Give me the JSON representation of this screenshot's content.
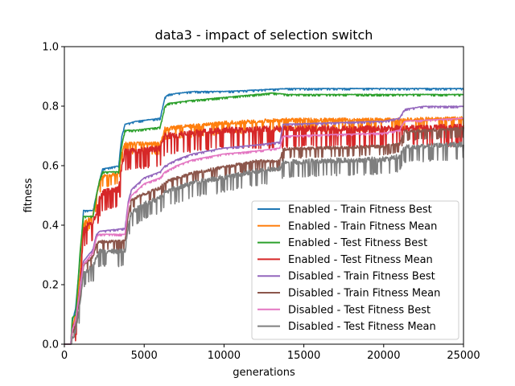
{
  "chart_data": {
    "type": "line",
    "title": "data3 - impact of selection switch",
    "xlabel": "generations",
    "ylabel": "fitness",
    "xlim": [
      0,
      25000
    ],
    "ylim": [
      0.0,
      1.0
    ],
    "xticks": [
      0,
      5000,
      10000,
      15000,
      20000,
      25000
    ],
    "xtick_labels": [
      "0",
      "5000",
      "10000",
      "15000",
      "20000",
      "25000"
    ],
    "yticks": [
      0.0,
      0.2,
      0.4,
      0.6,
      0.8,
      1.0
    ],
    "ytick_labels": [
      "0.0",
      "0.2",
      "0.4",
      "0.6",
      "0.8",
      "1.0"
    ],
    "grid": false,
    "legend_position": "lower-right",
    "series": [
      {
        "name": "Enabled - Train Fitness Best",
        "color": "#1f77b4",
        "noise": 0.002,
        "points": [
          [
            0,
            0
          ],
          [
            400,
            0
          ],
          [
            500,
            0.08
          ],
          [
            700,
            0.12
          ],
          [
            1000,
            0.3
          ],
          [
            1200,
            0.45
          ],
          [
            1800,
            0.45
          ],
          [
            2000,
            0.5
          ],
          [
            2200,
            0.55
          ],
          [
            2400,
            0.59
          ],
          [
            3400,
            0.6
          ],
          [
            3600,
            0.7
          ],
          [
            3800,
            0.74
          ],
          [
            4500,
            0.75
          ],
          [
            6000,
            0.76
          ],
          [
            6300,
            0.83
          ],
          [
            6500,
            0.84
          ],
          [
            8000,
            0.85
          ],
          [
            10000,
            0.85
          ],
          [
            12000,
            0.855
          ],
          [
            14000,
            0.86
          ],
          [
            25000,
            0.86
          ]
        ]
      },
      {
        "name": "Enabled - Train Fitness Mean",
        "color": "#ff7f0e",
        "noise": 0.015,
        "points": [
          [
            0,
            0
          ],
          [
            400,
            0
          ],
          [
            500,
            0.07
          ],
          [
            700,
            0.1
          ],
          [
            1000,
            0.25
          ],
          [
            1200,
            0.41
          ],
          [
            1800,
            0.44
          ],
          [
            2000,
            0.5
          ],
          [
            2200,
            0.55
          ],
          [
            2400,
            0.57
          ],
          [
            3400,
            0.58
          ],
          [
            3600,
            0.65
          ],
          [
            3800,
            0.68
          ],
          [
            4500,
            0.68
          ],
          [
            6000,
            0.68
          ],
          [
            6300,
            0.73
          ],
          [
            8000,
            0.74
          ],
          [
            10000,
            0.75
          ],
          [
            14000,
            0.76
          ],
          [
            20000,
            0.76
          ],
          [
            25000,
            0.765
          ]
        ]
      },
      {
        "name": "Enabled - Test Fitness Best",
        "color": "#2ca02c",
        "noise": 0.002,
        "points": [
          [
            0,
            0
          ],
          [
            400,
            0
          ],
          [
            500,
            0.09
          ],
          [
            700,
            0.1
          ],
          [
            1000,
            0.32
          ],
          [
            1200,
            0.43
          ],
          [
            1800,
            0.43
          ],
          [
            2000,
            0.5
          ],
          [
            2200,
            0.55
          ],
          [
            2400,
            0.58
          ],
          [
            3400,
            0.58
          ],
          [
            3600,
            0.67
          ],
          [
            3800,
            0.72
          ],
          [
            4500,
            0.72
          ],
          [
            6000,
            0.73
          ],
          [
            6300,
            0.8
          ],
          [
            6500,
            0.81
          ],
          [
            8000,
            0.82
          ],
          [
            10000,
            0.83
          ],
          [
            12000,
            0.84
          ],
          [
            13000,
            0.845
          ],
          [
            14000,
            0.84
          ],
          [
            25000,
            0.84
          ]
        ]
      },
      {
        "name": "Enabled - Test Fitness Mean",
        "color": "#d62728",
        "noise": 0.025,
        "points": [
          [
            0,
            0
          ],
          [
            400,
            0
          ],
          [
            500,
            0.06
          ],
          [
            700,
            0.08
          ],
          [
            1000,
            0.22
          ],
          [
            1200,
            0.4
          ],
          [
            1800,
            0.42
          ],
          [
            2000,
            0.45
          ],
          [
            2200,
            0.5
          ],
          [
            2400,
            0.52
          ],
          [
            3400,
            0.53
          ],
          [
            3600,
            0.61
          ],
          [
            3800,
            0.66
          ],
          [
            4500,
            0.66
          ],
          [
            6000,
            0.67
          ],
          [
            6300,
            0.71
          ],
          [
            8000,
            0.72
          ],
          [
            10000,
            0.73
          ],
          [
            14000,
            0.735
          ],
          [
            20000,
            0.735
          ],
          [
            25000,
            0.74
          ]
        ]
      },
      {
        "name": "Disabled - Train Fitness Best",
        "color": "#9467bd",
        "noise": 0.002,
        "points": [
          [
            0,
            0
          ],
          [
            400,
            0
          ],
          [
            500,
            0.05
          ],
          [
            700,
            0.08
          ],
          [
            1000,
            0.2
          ],
          [
            1200,
            0.28
          ],
          [
            1800,
            0.32
          ],
          [
            2000,
            0.37
          ],
          [
            2200,
            0.38
          ],
          [
            3800,
            0.39
          ],
          [
            4000,
            0.48
          ],
          [
            4200,
            0.52
          ],
          [
            5000,
            0.56
          ],
          [
            6000,
            0.58
          ],
          [
            6300,
            0.6
          ],
          [
            7000,
            0.62
          ],
          [
            8000,
            0.64
          ],
          [
            10000,
            0.66
          ],
          [
            12000,
            0.67
          ],
          [
            13500,
            0.68
          ],
          [
            13700,
            0.74
          ],
          [
            20000,
            0.75
          ],
          [
            21000,
            0.76
          ],
          [
            21300,
            0.79
          ],
          [
            22500,
            0.8
          ],
          [
            25000,
            0.8
          ]
        ]
      },
      {
        "name": "Disabled - Train Fitness Mean",
        "color": "#8c564b",
        "noise": 0.012,
        "points": [
          [
            0,
            0
          ],
          [
            400,
            0
          ],
          [
            500,
            0.04
          ],
          [
            700,
            0.07
          ],
          [
            1000,
            0.18
          ],
          [
            1200,
            0.27
          ],
          [
            1800,
            0.3
          ],
          [
            2000,
            0.34
          ],
          [
            2200,
            0.35
          ],
          [
            3800,
            0.35
          ],
          [
            4000,
            0.44
          ],
          [
            4200,
            0.49
          ],
          [
            5000,
            0.51
          ],
          [
            6000,
            0.53
          ],
          [
            6300,
            0.55
          ],
          [
            8000,
            0.58
          ],
          [
            10000,
            0.6
          ],
          [
            12000,
            0.62
          ],
          [
            13500,
            0.62
          ],
          [
            13700,
            0.66
          ],
          [
            20000,
            0.67
          ],
          [
            21000,
            0.68
          ],
          [
            21300,
            0.72
          ],
          [
            25000,
            0.73
          ]
        ]
      },
      {
        "name": "Disabled - Test Fitness Best",
        "color": "#e377c2",
        "noise": 0.002,
        "points": [
          [
            0,
            0
          ],
          [
            400,
            0
          ],
          [
            500,
            0.05
          ],
          [
            700,
            0.08
          ],
          [
            1000,
            0.19
          ],
          [
            1200,
            0.27
          ],
          [
            1800,
            0.31
          ],
          [
            2000,
            0.36
          ],
          [
            2200,
            0.37
          ],
          [
            3800,
            0.37
          ],
          [
            4000,
            0.47
          ],
          [
            4200,
            0.5
          ],
          [
            5000,
            0.54
          ],
          [
            6000,
            0.56
          ],
          [
            6300,
            0.58
          ],
          [
            7000,
            0.6
          ],
          [
            8000,
            0.62
          ],
          [
            10000,
            0.64
          ],
          [
            12000,
            0.65
          ],
          [
            13500,
            0.66
          ],
          [
            13700,
            0.7
          ],
          [
            20000,
            0.71
          ],
          [
            21000,
            0.72
          ],
          [
            21300,
            0.75
          ],
          [
            25000,
            0.76
          ]
        ]
      },
      {
        "name": "Disabled - Test Fitness Mean",
        "color": "#7f7f7f",
        "noise": 0.02,
        "points": [
          [
            0,
            0
          ],
          [
            400,
            0
          ],
          [
            500,
            0.03
          ],
          [
            700,
            0.05
          ],
          [
            1000,
            0.15
          ],
          [
            1200,
            0.25
          ],
          [
            1800,
            0.27
          ],
          [
            2000,
            0.3
          ],
          [
            2200,
            0.32
          ],
          [
            3800,
            0.32
          ],
          [
            4000,
            0.41
          ],
          [
            4200,
            0.45
          ],
          [
            5000,
            0.48
          ],
          [
            6000,
            0.5
          ],
          [
            6300,
            0.52
          ],
          [
            8000,
            0.55
          ],
          [
            10000,
            0.57
          ],
          [
            12000,
            0.59
          ],
          [
            13500,
            0.6
          ],
          [
            13700,
            0.62
          ],
          [
            20000,
            0.63
          ],
          [
            21000,
            0.64
          ],
          [
            21300,
            0.67
          ],
          [
            25000,
            0.68
          ]
        ]
      }
    ]
  }
}
